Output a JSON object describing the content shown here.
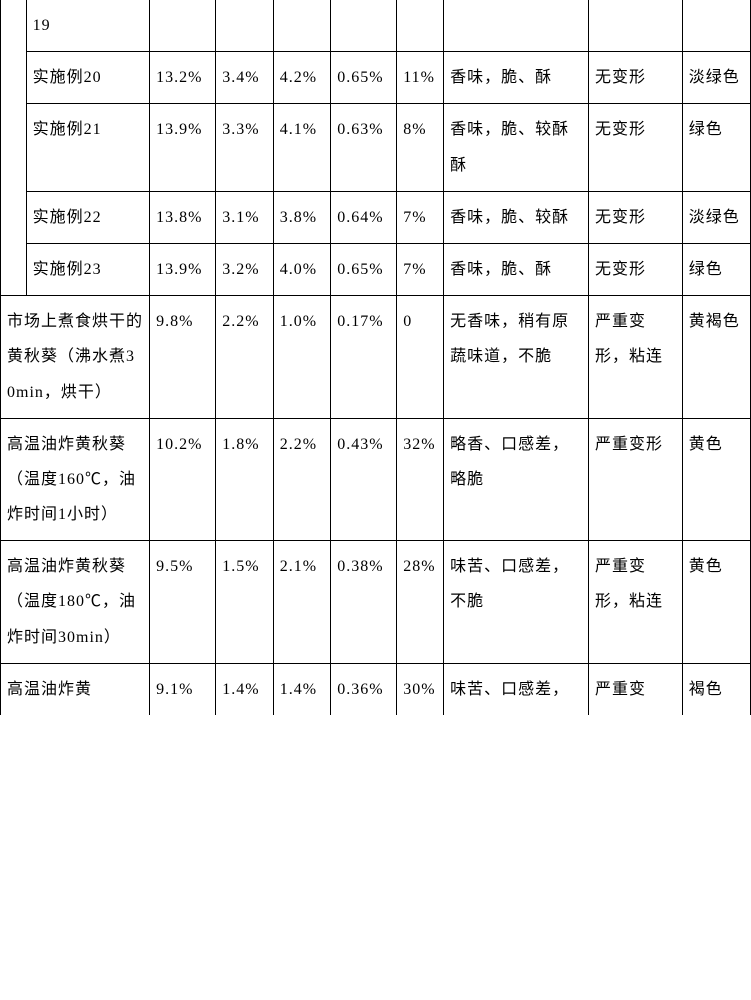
{
  "table": {
    "rows": [
      {
        "spacer": true,
        "label": "19",
        "p1": "",
        "p2": "",
        "p3": "",
        "p4": "",
        "p5": "",
        "desc": "",
        "def": "",
        "color": "",
        "cellClassLabel": "nb-top",
        "cellClassSpacer": "nb-top nb-bottom"
      },
      {
        "spacer": true,
        "label": "实施例20",
        "p1": "13.2%",
        "p2": "3.4%",
        "p3": "4.2%",
        "p4": "0.65%",
        "p5": "11%",
        "desc": "香味，脆、酥",
        "def": "无变形",
        "color": "淡绿色",
        "cellClassSpacer": "nb-top nb-bottom"
      },
      {
        "spacer": true,
        "label": "实施例21",
        "p1": "13.9%",
        "p2": "3.3%",
        "p3": "4.1%",
        "p4": "0.63%",
        "p5": "8%",
        "desc": "香味，脆、较酥酥",
        "def": "无变形",
        "color": "绿色",
        "cellClassSpacer": "nb-top nb-bottom"
      },
      {
        "spacer": true,
        "label": "实施例22",
        "p1": "13.8%",
        "p2": "3.1%",
        "p3": "3.8%",
        "p4": "0.64%",
        "p5": "7%",
        "desc": "香味，脆、较酥",
        "def": "无变形",
        "color": "淡绿色",
        "cellClassSpacer": "nb-top nb-bottom"
      },
      {
        "spacer": true,
        "label": "实施例23",
        "p1": "13.9%",
        "p2": "3.2%",
        "p3": "4.0%",
        "p4": "0.65%",
        "p5": "7%",
        "desc": "香味，脆、酥",
        "def": "无变形",
        "color": "绿色",
        "cellClassSpacer": "nb-top"
      },
      {
        "merged": true,
        "label": "市场上煮食烘干的黄秋葵（沸水煮30min，烘干）",
        "p1": "9.8%",
        "p2": "2.2%",
        "p3": "1.0%",
        "p4": "0.17%",
        "p5": "0",
        "desc": "无香味，稍有原蔬味道，不脆",
        "def": "严重变形，粘连",
        "color": "黄褐色"
      },
      {
        "merged": true,
        "label": "高温油炸黄秋葵（温度160℃，油炸时间1小时）",
        "p1": "10.2%",
        "p2": "1.8%",
        "p3": "2.2%",
        "p4": "0.43%",
        "p5": "32%",
        "desc": "略香、口感差，略脆",
        "def": "严重变形",
        "color": "黄色"
      },
      {
        "merged": true,
        "label": "高温油炸黄秋葵（温度180℃，油炸时间30min）",
        "p1": "9.5%",
        "p2": "1.5%",
        "p3": "2.1%",
        "p4": "0.38%",
        "p5": "28%",
        "desc": "味苦、口感差，不脆",
        "def": "严重变形，粘连",
        "color": "黄色"
      },
      {
        "merged": true,
        "label": "高温油炸黄",
        "p1": "9.1%",
        "p2": "1.4%",
        "p3": "1.4%",
        "p4": "0.36%",
        "p5": "30%",
        "desc": "味苦、口感差，",
        "def": "严重变",
        "color": "褐色",
        "rowClass": "nb-bottom"
      }
    ]
  }
}
